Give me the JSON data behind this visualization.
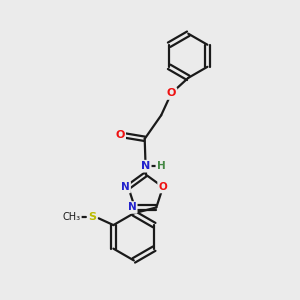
{
  "background_color": "#ebebeb",
  "bond_color": "#1a1a1a",
  "atom_colors": {
    "O": "#ee1111",
    "N": "#2222cc",
    "S": "#bbbb00",
    "H": "#448844",
    "C": "#1a1a1a"
  },
  "figsize": [
    3.0,
    3.0
  ],
  "dpi": 100
}
